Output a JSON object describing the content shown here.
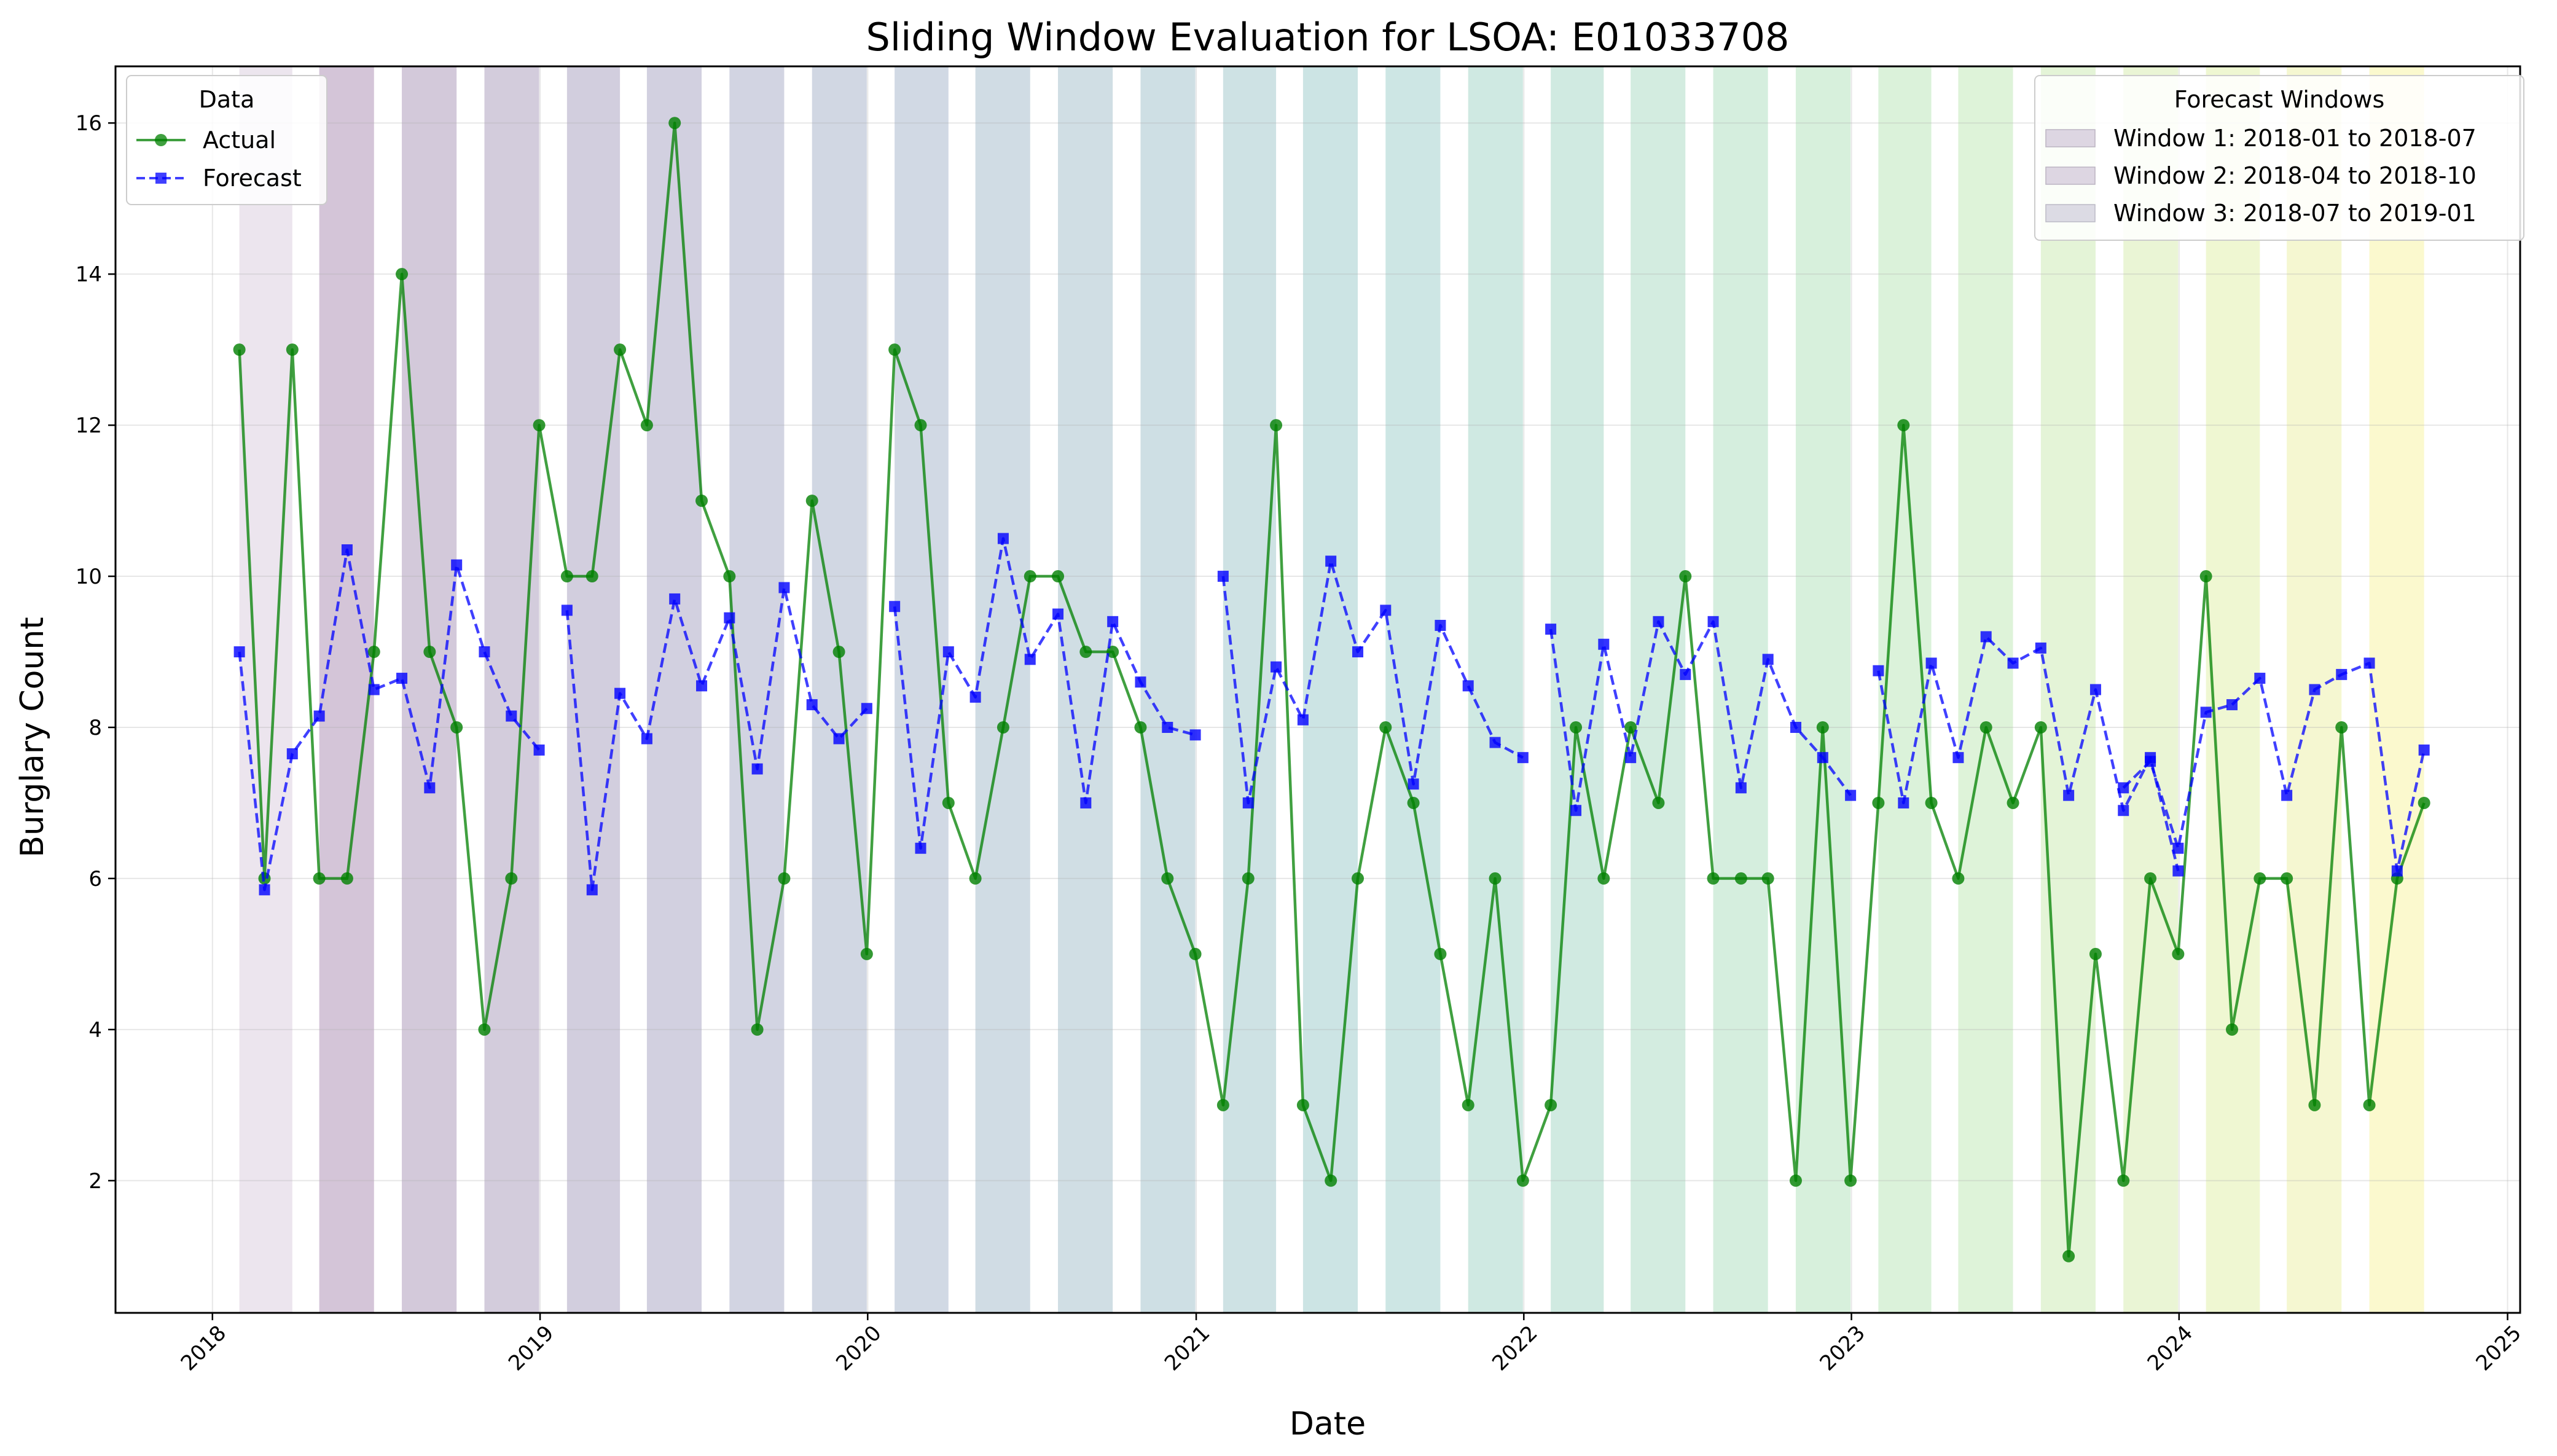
{
  "chart_data": {
    "type": "line",
    "title": "Sliding Window Evaluation for LSOA: E01033708",
    "xlabel": "Date",
    "ylabel": "Burglary Count",
    "xlim": [
      "2017-09-15",
      "2025-01-15"
    ],
    "ylim": [
      0.25,
      16.75
    ],
    "x_ticks": [
      "2018-01-01",
      "2019-01-01",
      "2020-01-01",
      "2021-01-01",
      "2022-01-01",
      "2023-01-01",
      "2024-01-01",
      "2025-01-01"
    ],
    "x_tick_labels": [
      "2018",
      "2019",
      "2020",
      "2021",
      "2022",
      "2023",
      "2024",
      "2025"
    ],
    "y_ticks": [
      2,
      4,
      6,
      8,
      10,
      12,
      14,
      16
    ],
    "grid": true,
    "dates": [
      "2018-01-31",
      "2018-02-28",
      "2018-03-31",
      "2018-04-30",
      "2018-05-31",
      "2018-06-30",
      "2018-07-31",
      "2018-08-31",
      "2018-09-30",
      "2018-10-31",
      "2018-11-30",
      "2018-12-31",
      "2019-01-31",
      "2019-02-28",
      "2019-03-31",
      "2019-04-30",
      "2019-05-31",
      "2019-06-30",
      "2019-07-31",
      "2019-08-31",
      "2019-09-30",
      "2019-10-31",
      "2019-11-30",
      "2019-12-31",
      "2020-01-31",
      "2020-02-29",
      "2020-03-31",
      "2020-04-30",
      "2020-05-31",
      "2020-06-30",
      "2020-07-31",
      "2020-08-31",
      "2020-09-30",
      "2020-10-31",
      "2020-11-30",
      "2020-12-31",
      "2021-01-31",
      "2021-02-28",
      "2021-03-31",
      "2021-04-30",
      "2021-05-31",
      "2021-06-30",
      "2021-07-31",
      "2021-08-31",
      "2021-09-30",
      "2021-10-31",
      "2021-11-30",
      "2021-12-31",
      "2022-01-31",
      "2022-02-28",
      "2022-03-31",
      "2022-04-30",
      "2022-05-31",
      "2022-06-30",
      "2022-07-31",
      "2022-08-31",
      "2022-09-30",
      "2022-10-31",
      "2022-11-30",
      "2022-12-31",
      "2023-01-31",
      "2023-02-28",
      "2023-03-31",
      "2023-04-30",
      "2023-05-31",
      "2023-06-30",
      "2023-07-31",
      "2023-08-31",
      "2023-09-30",
      "2023-10-31",
      "2023-11-30",
      "2023-12-31",
      "2024-01-31",
      "2024-02-29",
      "2024-03-31",
      "2024-04-30",
      "2024-05-31",
      "2024-06-30",
      "2024-07-31",
      "2024-08-31",
      "2024-09-30"
    ],
    "series": [
      {
        "name": "Actual",
        "color": "#008000",
        "marker": "circle",
        "linestyle": "solid",
        "values": [
          13,
          6,
          13,
          6,
          6,
          9,
          14,
          9,
          8,
          4,
          6,
          12,
          10,
          10,
          13,
          12,
          16,
          11,
          10,
          4,
          6,
          11,
          9,
          5,
          13,
          12,
          7,
          6,
          8,
          10,
          10,
          9,
          9,
          8,
          6,
          5,
          3,
          6,
          12,
          3,
          2,
          6,
          8,
          7,
          5,
          3,
          6,
          2,
          3,
          8,
          6,
          8,
          7,
          10,
          6,
          6,
          6,
          2,
          8,
          2,
          7,
          12,
          7,
          6,
          8,
          7,
          8,
          1,
          5,
          2,
          6,
          5,
          10,
          4,
          6,
          6,
          3,
          8,
          3,
          6,
          7
        ]
      },
      {
        "name": "Forecast",
        "color": "#0000ff",
        "marker": "square",
        "linestyle": "dashed",
        "segments": [
          [
            [
              0,
              9.0
            ],
            [
              1,
              5.85
            ],
            [
              2,
              7.65
            ],
            [
              3,
              8.15
            ],
            [
              4,
              10.35
            ],
            [
              5,
              8.5
            ],
            [
              6,
              8.65
            ],
            [
              7,
              7.2
            ],
            [
              8,
              10.15
            ],
            [
              9,
              9.0
            ],
            [
              10,
              8.15
            ],
            [
              11,
              7.7
            ]
          ],
          [
            [
              12,
              9.55
            ],
            [
              13,
              5.85
            ],
            [
              14,
              8.45
            ],
            [
              15,
              7.85
            ],
            [
              16,
              9.7
            ],
            [
              17,
              8.55
            ],
            [
              18,
              9.45
            ],
            [
              19,
              7.45
            ],
            [
              20,
              9.85
            ],
            [
              21,
              8.3
            ],
            [
              22,
              7.85
            ],
            [
              23,
              8.25
            ]
          ],
          [
            [
              24,
              9.6
            ],
            [
              25,
              6.4
            ],
            [
              26,
              9.0
            ],
            [
              27,
              8.4
            ],
            [
              28,
              10.5
            ],
            [
              29,
              8.9
            ],
            [
              30,
              9.5
            ],
            [
              31,
              7.0
            ],
            [
              32,
              9.4
            ],
            [
              33,
              8.6
            ],
            [
              34,
              8.0
            ],
            [
              35,
              7.9
            ]
          ],
          [
            [
              36,
              10.0
            ],
            [
              37,
              7.0
            ],
            [
              38,
              8.8
            ],
            [
              39,
              8.1
            ],
            [
              40,
              10.2
            ],
            [
              41,
              9.0
            ],
            [
              42,
              9.55
            ],
            [
              43,
              7.25
            ],
            [
              44,
              9.35
            ],
            [
              45,
              8.55
            ],
            [
              46,
              7.8
            ],
            [
              47,
              7.6
            ]
          ],
          [
            [
              48,
              9.3
            ],
            [
              49,
              6.9
            ],
            [
              50,
              9.1
            ],
            [
              51,
              7.6
            ],
            [
              52,
              9.4
            ],
            [
              53,
              8.7
            ],
            [
              54,
              9.4
            ],
            [
              55,
              7.2
            ],
            [
              56,
              8.9
            ],
            [
              57,
              8.0
            ],
            [
              58,
              7.6
            ],
            [
              59,
              7.1
            ]
          ],
          [
            [
              60,
              8.75
            ],
            [
              61,
              7.0
            ],
            [
              62,
              8.85
            ],
            [
              63,
              7.6
            ],
            [
              64,
              9.2
            ],
            [
              65,
              8.85
            ],
            [
              66,
              9.05
            ],
            [
              67,
              7.1
            ],
            [
              68,
              8.5
            ],
            [
              69,
              6.9
            ],
            [
              70,
              7.6
            ],
            [
              71,
              6.1
            ]
          ],
          [
            [
              69,
              7.2
            ],
            [
              70,
              7.55
            ],
            [
              71,
              6.4
            ],
            [
              72,
              8.2
            ],
            [
              73,
              8.3
            ],
            [
              74,
              8.65
            ],
            [
              75,
              7.1
            ],
            [
              76,
              8.5
            ],
            [
              77,
              8.7
            ],
            [
              78,
              8.85
            ],
            [
              79,
              6.1
            ],
            [
              80,
              7.7
            ]
          ]
        ]
      }
    ],
    "windows": [
      [
        "2018-01-31",
        "2018-03-31"
      ],
      [
        "2018-04-30",
        "2018-06-30"
      ],
      [
        "2018-07-31",
        "2018-09-30"
      ],
      [
        "2018-10-31",
        "2018-12-31"
      ],
      [
        "2019-01-31",
        "2019-03-31"
      ],
      [
        "2019-04-30",
        "2019-06-30"
      ],
      [
        "2019-07-31",
        "2019-09-30"
      ],
      [
        "2019-10-31",
        "2019-12-31"
      ],
      [
        "2020-01-31",
        "2020-03-31"
      ],
      [
        "2020-04-30",
        "2020-06-30"
      ],
      [
        "2020-07-31",
        "2020-09-30"
      ],
      [
        "2020-10-31",
        "2020-12-31"
      ],
      [
        "2021-01-31",
        "2021-03-31"
      ],
      [
        "2021-04-30",
        "2021-06-30"
      ],
      [
        "2021-07-31",
        "2021-09-30"
      ],
      [
        "2021-10-31",
        "2021-12-31"
      ],
      [
        "2022-01-31",
        "2022-03-31"
      ],
      [
        "2022-04-30",
        "2022-06-30"
      ],
      [
        "2022-07-31",
        "2022-09-30"
      ],
      [
        "2022-10-31",
        "2022-12-31"
      ],
      [
        "2023-01-31",
        "2023-03-31"
      ],
      [
        "2023-04-30",
        "2023-06-30"
      ],
      [
        "2023-07-31",
        "2023-09-30"
      ],
      [
        "2023-10-31",
        "2023-12-31"
      ],
      [
        "2024-01-31",
        "2024-03-31"
      ],
      [
        "2024-04-30",
        "2024-06-30"
      ],
      [
        "2024-07-31",
        "2024-09-30"
      ]
    ],
    "legend_data": {
      "title": "Data",
      "position": "upper-left",
      "entries": [
        "Actual",
        "Forecast"
      ]
    },
    "legend_windows": {
      "title": "Forecast Windows",
      "position": "upper-right",
      "entries": [
        "Window 1: 2018-01 to 2018-07",
        "Window 2: 2018-04 to 2018-10",
        "Window 3: 2018-07 to 2019-01"
      ]
    }
  }
}
